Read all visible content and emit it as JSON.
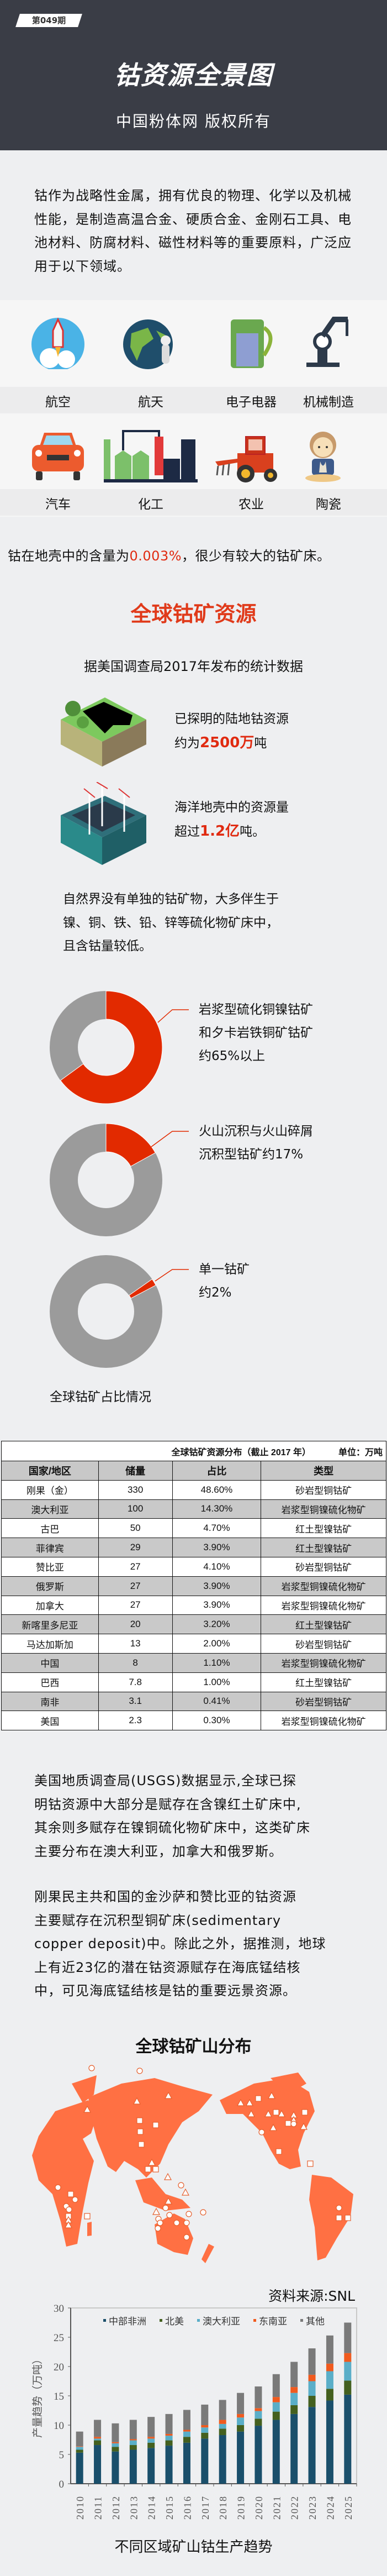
{
  "header": {
    "issue": "第049期",
    "title": "钴资源全景图",
    "subtitle": "中国粉体网  版权所有"
  },
  "intro": "钴作为战略性金属，拥有优良的物理、化学以及机械性能，是制造高温合金、硬质合金、金刚石工具、电池材料、防腐材料、磁性材料等的重要原料，广泛应用于以下领域。",
  "applications": [
    {
      "label": "航空",
      "icon": "rocket-icon"
    },
    {
      "label": "航天",
      "icon": "earth-astronaut-icon"
    },
    {
      "label": "电子电器",
      "icon": "juicer-icon"
    },
    {
      "label": "机械制造",
      "icon": "robot-arm-icon"
    },
    {
      "label": "汽车",
      "icon": "car-icon"
    },
    {
      "label": "化工",
      "icon": "factory-icon"
    },
    {
      "label": "农业",
      "icon": "tractor-icon"
    },
    {
      "label": "陶瓷",
      "icon": "potter-icon"
    }
  ],
  "crust": {
    "before": "钴在地壳中的含量为",
    "highlight": "0.003%",
    "after": "，很少有较大的钴矿床。"
  },
  "resources": {
    "title": "全球钴矿资源",
    "source_line": "据美国调查局2017年发布的统计数据",
    "land": {
      "line1": "已探明的陆地钴资源",
      "line2_before": "约为",
      "highlight": "2500万",
      "line2_after": "吨"
    },
    "ocean": {
      "line1": "海洋地壳中的资源量",
      "line2_before": "超过",
      "highlight": "1.2亿",
      "line2_after": "吨。"
    }
  },
  "nature_text": [
    "自然界没有单独的钴矿物，大多伴生于",
    "镍、铜、铁、铅、锌等硫化物矿床中，",
    "且含钴量较低。"
  ],
  "colors": {
    "accent": "#e02a10",
    "donut_red": "#e22a00",
    "donut_gray": "#9b9b9b",
    "map": "#ff7043",
    "header_bg": "#3a3d46"
  },
  "donuts": [
    {
      "percent": 65,
      "lines": [
        "岩浆型硫化铜镍钴矿",
        "和夕卡岩铁铜矿钴矿",
        "约65%以上"
      ]
    },
    {
      "percent": 17,
      "lines": [
        "火山沉积与火山碎屑",
        "沉积型钴矿约17%"
      ]
    },
    {
      "percent": 2,
      "lines": [
        "单一钴矿",
        "约2%"
      ]
    }
  ],
  "donut_caption": "全球钴矿占比情况",
  "table": {
    "title": "全球钴矿资源分布（截止 2017 年）",
    "unit": "单位：万吨",
    "headers": [
      "国家/地区",
      "储量",
      "占比",
      "类型"
    ],
    "rows": [
      [
        "刚果（金）",
        "330",
        "48.60%",
        "砂岩型铜钴矿"
      ],
      [
        "澳大利亚",
        "100",
        "14.30%",
        "岩浆型铜镍硫化物矿"
      ],
      [
        "古巴",
        "50",
        "4.70%",
        "红土型镍钴矿"
      ],
      [
        "菲律宾",
        "29",
        "3.90%",
        "红土型镍钴矿"
      ],
      [
        "赞比亚",
        "27",
        "4.10%",
        "砂岩型铜钴矿"
      ],
      [
        "俄罗斯",
        "27",
        "3.90%",
        "岩浆型铜镍硫化物矿"
      ],
      [
        "加拿大",
        "27",
        "3.90%",
        "岩浆型铜镍硫化物矿"
      ],
      [
        "新喀里多尼亚",
        "20",
        "3.20%",
        "红土型镍钴矿"
      ],
      [
        "马达加斯加",
        "13",
        "2.00%",
        "砂岩型铜钴矿"
      ],
      [
        "中国",
        "8",
        "1.10%",
        "岩浆型铜镍硫化物矿"
      ],
      [
        "巴西",
        "7.8",
        "1.00%",
        "红土型镍钴矿"
      ],
      [
        "南非",
        "3.1",
        "0.41%",
        "砂岩型铜钴矿"
      ],
      [
        "美国",
        "2.3",
        "0.30%",
        "岩浆型铜镍硫化物矿"
      ]
    ]
  },
  "usgs_text": [
    "美国地质调查局(USGS)数据显示,全球已探",
    "明钴资源中大部分是赋存在含镍红土矿床中,",
    "其余则多赋存在镍铜硫化物矿床中，这类矿床",
    "主要分布在澳大利亚，加拿大和俄罗斯。"
  ],
  "drc_text": [
    "刚果民主共和国的金沙萨和赞比亚的钴资源",
    "主要赋存在沉积型铜矿床(sedimentary",
    "copper  deposit)中。除此之外，据推测，地球",
    "上有近23亿的潜在钴资源赋存在海底锰结核",
    "中，可见海底锰结核是钴的重要远景资源。"
  ],
  "map": {
    "title": "全球钴矿山分布"
  },
  "source": "资料来源:SNL",
  "chart_data": {
    "type": "bar",
    "stacked": true,
    "title": "不同区域矿山钴生产趋势",
    "ylabel": "产量趋势（万吨）",
    "xlabel": "",
    "ylim": [
      0,
      30
    ],
    "yticks": [
      0,
      5,
      10,
      15,
      20,
      25,
      30
    ],
    "legend_position": "top",
    "categories": [
      "2010",
      "2011",
      "2012",
      "2013",
      "2014",
      "2015",
      "2016",
      "2017",
      "2018",
      "2019",
      "2020",
      "2021",
      "2022",
      "2023",
      "2024",
      "2025"
    ],
    "series": [
      {
        "name": "中部非洲",
        "color": "#1a4f6b",
        "values": [
          5.3,
          6.6,
          5.5,
          5.8,
          6.1,
          6.5,
          7.0,
          7.7,
          8.3,
          8.9,
          9.9,
          10.9,
          11.9,
          13.1,
          14.2,
          15.2
        ]
      },
      {
        "name": "北美",
        "color": "#44601f",
        "values": [
          0.5,
          0.8,
          0.8,
          0.8,
          0.9,
          0.9,
          1.0,
          1.0,
          1.1,
          1.1,
          1.2,
          1.4,
          1.5,
          1.9,
          2.0,
          2.4
        ]
      },
      {
        "name": "澳大利亚",
        "color": "#5aaec8",
        "values": [
          0.5,
          0.3,
          0.6,
          0.8,
          0.7,
          0.8,
          0.9,
          0.9,
          0.8,
          1.3,
          1.3,
          1.6,
          2.1,
          2.5,
          3.0,
          3.2
        ]
      },
      {
        "name": "东南亚",
        "color": "#f05a1e",
        "values": [
          0.1,
          0.3,
          0.2,
          0.2,
          0.3,
          0.3,
          0.3,
          0.4,
          0.7,
          0.6,
          0.5,
          0.9,
          1.0,
          1.1,
          1.3,
          1.5
        ]
      },
      {
        "name": "其他",
        "color": "#7a7a7a",
        "values": [
          2.5,
          2.9,
          3.2,
          3.3,
          3.4,
          3.4,
          3.4,
          3.5,
          3.4,
          3.6,
          3.7,
          3.9,
          4.3,
          4.5,
          4.8,
          5.2
        ]
      }
    ]
  }
}
